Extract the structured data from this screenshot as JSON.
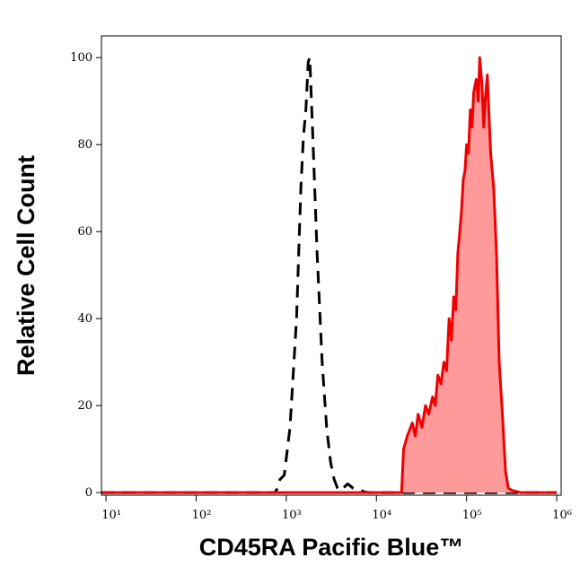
{
  "chart_data": {
    "type": "histogram-overlay",
    "xlabel": "CD45RA Pacific Blue™",
    "ylabel": "Relative Cell Count",
    "xscale": "log",
    "xlim": [
      8.9,
      1120000
    ],
    "ylim": [
      -0.6,
      105
    ],
    "xticks": [
      {
        "value": 10,
        "label": "10¹"
      },
      {
        "value": 100,
        "label": "10²"
      },
      {
        "value": 1000,
        "label": "10³"
      },
      {
        "value": 10000,
        "label": "10⁴"
      },
      {
        "value": 100000,
        "label": "10⁵"
      },
      {
        "value": 1000000,
        "label": "10⁶"
      }
    ],
    "yticks": [
      0,
      20,
      40,
      60,
      80,
      100
    ],
    "series": [
      {
        "color": "#000000",
        "style": "dashed",
        "fill": null,
        "x": [
          9,
          100,
          500,
          750,
          800,
          850,
          950,
          1100,
          1300,
          1450,
          1550,
          1650,
          1750,
          1820,
          1900,
          2000,
          2200,
          2500,
          2800,
          3100,
          3400,
          3700,
          4000,
          4800,
          5500,
          6500,
          8000,
          20000,
          100000,
          1000000
        ],
        "values": [
          0,
          0,
          0,
          0,
          1,
          3,
          4,
          15,
          40,
          70,
          82,
          88,
          99,
          100,
          90,
          78,
          55,
          30,
          15,
          7,
          3,
          1,
          0.5,
          2,
          1,
          0.5,
          0,
          0,
          0,
          0
        ]
      },
      {
        "color": "#ee0000",
        "style": "solid",
        "fill": "#ff9a9a",
        "x": [
          9,
          1000,
          19000,
          20000,
          22000,
          25000,
          27000,
          29000,
          32000,
          35000,
          38000,
          42000,
          45000,
          48000,
          52000,
          56000,
          60000,
          64000,
          68000,
          72000,
          76000,
          80000,
          84000,
          88000,
          92000,
          96000,
          100000,
          105000,
          110000,
          115000,
          120000,
          128000,
          135000,
          140000,
          148000,
          155000,
          162000,
          170000,
          178000,
          185000,
          200000,
          215000,
          230000,
          250000,
          270000,
          290000,
          320000,
          400000,
          1000000
        ],
        "values": [
          0,
          0,
          0,
          10,
          13,
          16,
          13,
          18,
          15,
          20,
          18,
          22,
          20,
          27,
          25,
          30,
          28,
          40,
          35,
          45,
          42,
          55,
          60,
          65,
          72,
          74,
          80,
          78,
          88,
          84,
          92,
          95,
          90,
          100,
          94,
          84,
          91,
          96,
          86,
          78,
          70,
          55,
          30,
          18,
          5,
          1,
          0.5,
          0,
          0
        ]
      }
    ]
  }
}
